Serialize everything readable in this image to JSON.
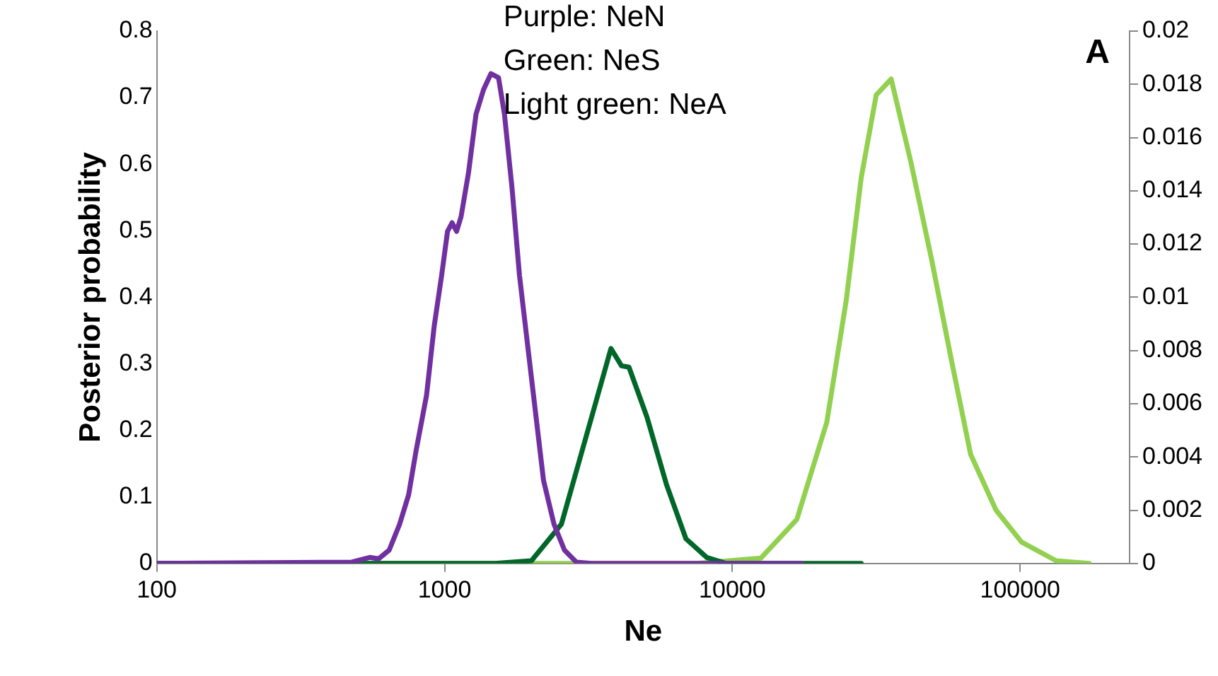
{
  "chart_data": {
    "type": "line",
    "xlabel": "Ne",
    "ylabel": "Posterior probability",
    "log": "x",
    "grid": false,
    "legend": false,
    "marker": "none",
    "line_style": "solid",
    "xlim": [
      100,
      240000
    ],
    "xticks": [
      100,
      1000,
      10000,
      100000
    ],
    "ylim": [
      0,
      0.8
    ],
    "yticks": [
      0,
      0.1,
      0.2,
      0.3,
      0.4,
      0.5,
      0.6,
      0.7,
      0.8
    ],
    "y2lim": [
      0,
      0.02
    ],
    "y2ticks": [
      0,
      0.002,
      0.004,
      0.006,
      0.008,
      0.01,
      0.012,
      0.014,
      0.016,
      0.018,
      0.02
    ],
    "annotations": [
      "Purple: NeN",
      "Green: NeS",
      "Light green: NeA",
      "A"
    ],
    "series": [
      {
        "color": "#7030a0",
        "x": [
          100,
          476,
          549,
          590,
          642,
          698,
          750,
          796,
          866,
          920,
          977,
          1024,
          1062,
          1101,
          1141,
          1211,
          1286,
          1366,
          1449,
          1540,
          1615,
          1715,
          1821,
          2004,
          2207,
          2400,
          2610,
          2870,
          3240,
          17380
        ],
        "values": [
          0,
          0.002,
          0.009,
          0.007,
          0.02,
          0.059,
          0.103,
          0.169,
          0.253,
          0.356,
          0.433,
          0.499,
          0.512,
          0.499,
          0.521,
          0.587,
          0.675,
          0.712,
          0.736,
          0.73,
          0.675,
          0.565,
          0.433,
          0.279,
          0.125,
          0.059,
          0.02,
          0.002,
          0,
          0
        ]
      },
      {
        "color": "#006629",
        "x": [
          100,
          1500,
          2004,
          2547,
          2978,
          3318,
          3786,
          4120,
          4373,
          5050,
          5900,
          6900,
          8150,
          9530,
          28050
        ],
        "values": [
          0,
          0,
          0.004,
          0.059,
          0.163,
          0.235,
          0.323,
          0.297,
          0.295,
          0.22,
          0.119,
          0.037,
          0.009,
          0,
          0
        ]
      },
      {
        "color": "#92d050",
        "axis": "y2",
        "x": [
          100,
          7500,
          12560,
          16750,
          21290,
          24890,
          28050,
          31620,
          35640,
          41690,
          49300,
          57560,
          67300,
          82500,
          101200,
          133400,
          173800
        ],
        "values": [
          0,
          0,
          0.0002,
          0.00165,
          0.0053,
          0.0099,
          0.0145,
          0.0176,
          0.0182,
          0.0151,
          0.0114,
          0.0077,
          0.0041,
          0.002,
          0.0008,
          0.0001,
          0
        ]
      }
    ]
  }
}
